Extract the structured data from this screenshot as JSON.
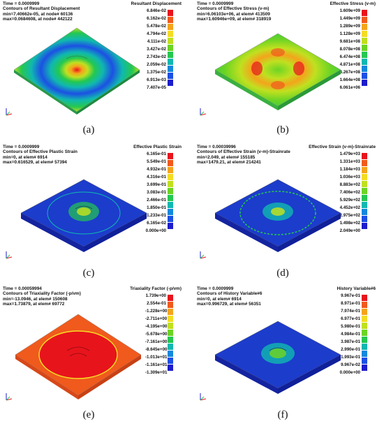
{
  "panels": [
    {
      "time": "Time =   0.0009999",
      "contours": "Contours of Resultant Displacement",
      "min": "min=7.40662e-05, at node# 60136",
      "max": "max=0.0684608, at node# 442122",
      "colorbar_title": "Resultant Displacement",
      "ticks": [
        "6.846e-02",
        "6.162e-02",
        "5.478e-02",
        "4.794e-02",
        "4.111e-02",
        "3.427e-02",
        "2.743e-02",
        "2.059e-02",
        "1.375e-02",
        "6.913e-03",
        "7.407e-05"
      ],
      "label": "(a)"
    },
    {
      "time": "Time =   0.0009999",
      "contours": "Contours of Effective Stress (v-m)",
      "min": "min=6.06103e+06, at elem# 413509",
      "max": "max=1.60946e+09, at elem# 318919",
      "colorbar_title": "Effective Stress (v-m)",
      "ticks": [
        "1.609e+09",
        "1.449e+09",
        "1.289e+09",
        "1.128e+09",
        "9.681e+08",
        "8.078e+08",
        "6.474e+08",
        "4.871e+08",
        "3.267e+08",
        "1.664e+08",
        "6.061e+06"
      ],
      "label": "(b)"
    },
    {
      "time": "Time =   0.0009999",
      "contours": "Contours of Effective Plastic Strain",
      "min": "min=0, at elem# 6914",
      "max": "max=0.616529, at elem# 57394",
      "colorbar_title": "Effective Plastic Strain",
      "ticks": [
        "6.165e-01",
        "5.549e-01",
        "4.932e-01",
        "4.316e-01",
        "3.699e-01",
        "3.083e-01",
        "2.466e-01",
        "1.850e-01",
        "1.233e-01",
        "6.165e-02",
        "0.000e+00"
      ],
      "label": "(c)"
    },
    {
      "time": "Time =   0.00039996",
      "contours": "Contours of Effective Strain (v-m)-Strainrate",
      "min": "min=2.049, at elem# 155185",
      "max": "max=1479.21, at elem# 214241",
      "colorbar_title": "Effective Strain (v-m)-Strainrate",
      "ticks": [
        "1.479e+03",
        "1.331e+03",
        "1.184e+03",
        "1.036e+03",
        "8.883e+02",
        "7.406e+02",
        "5.929e+02",
        "4.452e+02",
        "2.975e+02",
        "1.498e+02",
        "2.049e+00"
      ],
      "label": "(d)"
    },
    {
      "time": "Time =   0.00059994",
      "contours": "Contours of Triaxiality Factor (-p/vm)",
      "min": "min=-13.0946, at elem# 150608",
      "max": "max=1.73879, at elem# 69772",
      "colorbar_title": "Triaxiality Factor (-p/vm)",
      "ticks": [
        "1.739e+00",
        "2.554e-01",
        "-1.228e+00",
        "-2.711e+00",
        "-4.195e+00",
        "-5.678e+00",
        "-7.161e+00",
        "-8.645e+00",
        "-1.013e+01",
        "-1.161e+01",
        "-1.309e+01"
      ],
      "label": "(e)"
    },
    {
      "time": "Time =   0.0009999",
      "contours": "Contours of History Variable#6",
      "min": "min=0, at elem# 6914",
      "max": "max=0.996729, at elem# 56351",
      "colorbar_title": "History Variable#6",
      "ticks": [
        "9.967e-01",
        "8.971e-01",
        "7.974e-01",
        "6.977e-01",
        "5.980e-01",
        "4.984e-01",
        "3.987e-01",
        "2.990e-01",
        "1.993e-01",
        "9.967e-02",
        "0.000e+00"
      ],
      "label": "(f)"
    }
  ],
  "colormap": [
    "#e8141c",
    "#f05a1c",
    "#f4a41c",
    "#f4dc24",
    "#c0e020",
    "#6cd424",
    "#24c850",
    "#10b8b0",
    "#1488dc",
    "#1c50e4",
    "#1c1ccc"
  ]
}
